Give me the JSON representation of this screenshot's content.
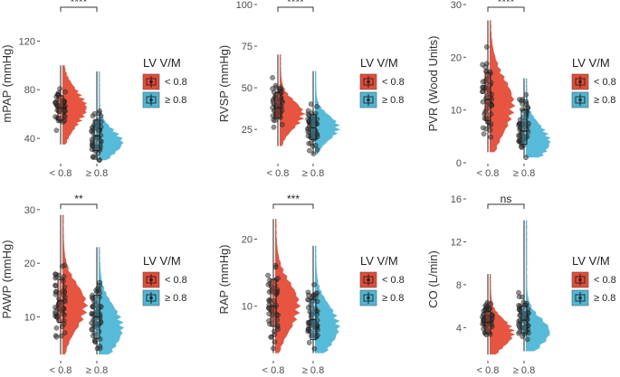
{
  "chart_data": [
    {
      "type": "raincloud",
      "title": "",
      "ylabel": "mPAP (mmHg)",
      "xlabel": "",
      "categories": [
        "< 0.8",
        "≥ 0.8"
      ],
      "ylim": [
        20,
        150
      ],
      "yticks": [
        40,
        80,
        120
      ],
      "xtick_labels": [
        "< 0.8",
        "≥ 0.8"
      ],
      "significance": "****",
      "legend": {
        "title": "LV V/M",
        "items": [
          {
            "label": "< 0.8",
            "color": "#e64b35"
          },
          {
            "label": "≥ 0.8",
            "color": "#4db7d6"
          }
        ]
      },
      "series": [
        {
          "name": "< 0.8",
          "color": "#e64b35",
          "box": {
            "q1": 55,
            "median": 65,
            "q3": 75,
            "whisker_low": 35,
            "whisker_high": 100
          },
          "kde_peak": 65,
          "kde_spread": 14
        },
        {
          "name": "≥ 0.8",
          "color": "#4db7d6",
          "box": {
            "q1": 30,
            "median": 42,
            "q3": 55,
            "whisker_low": 22,
            "whisker_high": 95
          },
          "kde_peak": 37,
          "kde_spread": 10
        }
      ]
    },
    {
      "type": "raincloud",
      "title": "",
      "ylabel": "RVSP (mmHg)",
      "xlabel": "",
      "categories": [
        "< 0.8",
        "≥ 0.8"
      ],
      "ylim": [
        5,
        100
      ],
      "yticks": [
        25,
        50,
        75,
        100
      ],
      "xtick_labels": [
        "< 0.8",
        "≥ 0.8"
      ],
      "significance": "****",
      "legend": {
        "title": "LV V/M",
        "items": [
          {
            "label": "< 0.8",
            "color": "#e64b35"
          },
          {
            "label": "≥ 0.8",
            "color": "#4db7d6"
          }
        ]
      },
      "series": [
        {
          "name": "< 0.8",
          "color": "#e64b35",
          "box": {
            "q1": 32,
            "median": 38,
            "q3": 47,
            "whisker_low": 15,
            "whisker_high": 70
          },
          "kde_peak": 34,
          "kde_spread": 8
        },
        {
          "name": "≥ 0.8",
          "color": "#4db7d6",
          "box": {
            "q1": 19,
            "median": 26,
            "q3": 34,
            "whisker_low": 10,
            "whisker_high": 60
          },
          "kde_peak": 26,
          "kde_spread": 7
        }
      ]
    },
    {
      "type": "raincloud",
      "title": "",
      "ylabel": "PVR (Wood Units)",
      "xlabel": "",
      "categories": [
        "< 0.8",
        "≥ 0.8"
      ],
      "ylim": [
        0,
        30
      ],
      "yticks": [
        0,
        10,
        20,
        30
      ],
      "xtick_labels": [
        "< 0.8",
        "≥ 0.8"
      ],
      "significance": "****",
      "legend": {
        "title": "LV V/M",
        "items": [
          {
            "label": "< 0.8",
            "color": "#e64b35"
          },
          {
            "label": "≥ 0.8",
            "color": "#4db7d6"
          }
        ]
      },
      "series": [
        {
          "name": "< 0.8",
          "color": "#e64b35",
          "box": {
            "q1": 8,
            "median": 12,
            "q3": 17,
            "whisker_low": 2,
            "whisker_high": 27
          },
          "kde_peak": 11,
          "kde_spread": 5
        },
        {
          "name": "≥ 0.8",
          "color": "#4db7d6",
          "box": {
            "q1": 3.5,
            "median": 6,
            "q3": 10,
            "whisker_low": 1,
            "whisker_high": 16
          },
          "kde_peak": 4,
          "kde_spread": 3
        }
      ]
    },
    {
      "type": "raincloud",
      "title": "",
      "ylabel": "PAWP (mmHg)",
      "xlabel": "",
      "categories": [
        "< 0.8",
        "≥ 0.8"
      ],
      "ylim": [
        2,
        32
      ],
      "yticks": [
        10,
        20,
        30
      ],
      "xtick_labels": [
        "< 0.8",
        "≥ 0.8"
      ],
      "significance": "**",
      "legend": {
        "title": "LV V/M",
        "items": [
          {
            "label": "< 0.8",
            "color": "#e64b35"
          },
          {
            "label": "≥ 0.8",
            "color": "#4db7d6"
          }
        ]
      },
      "series": [
        {
          "name": "< 0.8",
          "color": "#e64b35",
          "box": {
            "q1": 9,
            "median": 13,
            "q3": 17,
            "whisker_low": 3,
            "whisker_high": 29
          },
          "kde_peak": 12,
          "kde_spread": 4
        },
        {
          "name": "≥ 0.8",
          "color": "#4db7d6",
          "box": {
            "q1": 6,
            "median": 10,
            "q3": 14,
            "whisker_low": 3,
            "whisker_high": 23
          },
          "kde_peak": 8,
          "kde_spread": 4
        }
      ]
    },
    {
      "type": "raincloud",
      "title": "",
      "ylabel": "RAP (mmHg)",
      "xlabel": "",
      "categories": [
        "< 0.8",
        "≥ 0.8"
      ],
      "ylim": [
        2,
        26
      ],
      "yticks": [
        10,
        20
      ],
      "xtick_labels": [
        "< 0.8",
        "≥ 0.8"
      ],
      "significance": "***",
      "legend": {
        "title": "LV V/M",
        "items": [
          {
            "label": "< 0.8",
            "color": "#e64b35"
          },
          {
            "label": "≥ 0.8",
            "color": "#4db7d6"
          }
        ]
      },
      "series": [
        {
          "name": "< 0.8",
          "color": "#e64b35",
          "box": {
            "q1": 7,
            "median": 10,
            "q3": 14,
            "whisker_low": 3,
            "whisker_high": 23
          },
          "kde_peak": 10,
          "kde_spread": 3.5
        },
        {
          "name": "≥ 0.8",
          "color": "#4db7d6",
          "box": {
            "q1": 5,
            "median": 8,
            "q3": 11,
            "whisker_low": 3,
            "whisker_high": 19
          },
          "kde_peak": 7,
          "kde_spread": 3
        }
      ]
    },
    {
      "type": "raincloud",
      "title": "",
      "ylabel": "CO (L/min)",
      "xlabel": "",
      "categories": [
        "< 0.8",
        "≥ 0.8"
      ],
      "ylim": [
        1,
        16
      ],
      "yticks": [
        4,
        8,
        12,
        16
      ],
      "xtick_labels": [
        "< 0.8",
        "≥ 0.8"
      ],
      "significance": "ns",
      "legend": {
        "title": "LV V/M",
        "items": [
          {
            "label": "< 0.8",
            "color": "#e64b35"
          },
          {
            "label": "≥ 0.8",
            "color": "#4db7d6"
          }
        ]
      },
      "series": [
        {
          "name": "< 0.8",
          "color": "#e64b35",
          "box": {
            "q1": 3.5,
            "median": 4.5,
            "q3": 5.5,
            "whisker_low": 1.5,
            "whisker_high": 9
          },
          "kde_peak": 3.5,
          "kde_spread": 1.2
        },
        {
          "name": "≥ 0.8",
          "color": "#4db7d6",
          "box": {
            "q1": 3.5,
            "median": 4.7,
            "q3": 6,
            "whisker_low": 1.8,
            "whisker_high": 14
          },
          "kde_peak": 3.6,
          "kde_spread": 1.3
        }
      ]
    }
  ]
}
